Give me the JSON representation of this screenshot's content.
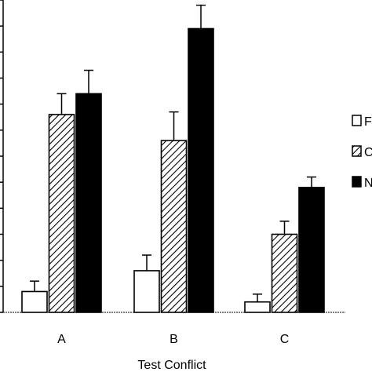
{
  "chart_data": {
    "type": "bar",
    "title": "",
    "xlabel": "Test Conflict",
    "ylabel": "",
    "categories": [
      "A",
      "B",
      "C"
    ],
    "ylim": [
      0,
      12
    ],
    "series": [
      {
        "name": "F",
        "pattern": "white",
        "values": [
          0.8,
          1.6,
          0.4
        ],
        "errors": [
          0.4,
          0.6,
          0.3
        ]
      },
      {
        "name": "C",
        "pattern": "hatched",
        "values": [
          7.6,
          6.6,
          3.0
        ],
        "errors": [
          0.8,
          1.1,
          0.5
        ]
      },
      {
        "name": "N",
        "pattern": "black",
        "values": [
          8.4,
          10.9,
          4.8
        ],
        "errors": [
          0.9,
          0.9,
          0.4
        ]
      }
    ],
    "grid": false,
    "legend_position": "right",
    "colors": {
      "bar_outline": "#000000",
      "solid_fill": "#000000",
      "open_fill": "#ffffff",
      "hatch": "#000000"
    }
  }
}
